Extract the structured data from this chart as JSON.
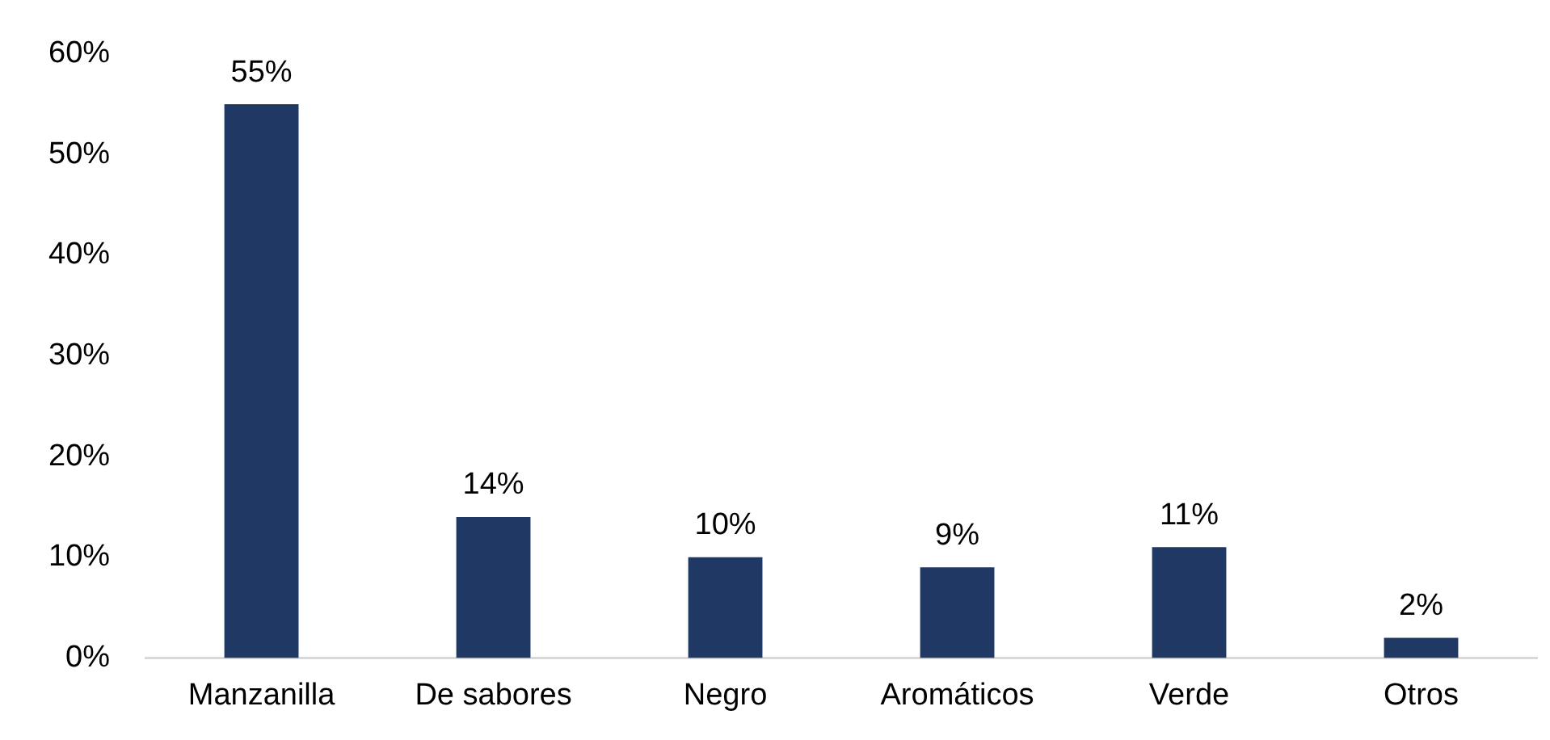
{
  "chart_data": {
    "type": "bar",
    "categories": [
      "Manzanilla",
      "De sabores",
      "Negro",
      "Aromáticos",
      "Verde",
      "Otros"
    ],
    "values": [
      55,
      14,
      10,
      9,
      11,
      2
    ],
    "value_labels": [
      "55%",
      "14%",
      "10%",
      "9%",
      "11%",
      "2%"
    ],
    "color": "#203864",
    "ylim": [
      0,
      60
    ],
    "yticks": [
      {
        "value": 0,
        "label": "0%"
      },
      {
        "value": 10,
        "label": "10%"
      },
      {
        "value": 20,
        "label": "20%"
      },
      {
        "value": 30,
        "label": "30%"
      },
      {
        "value": 40,
        "label": "40%"
      },
      {
        "value": 50,
        "label": "50%"
      },
      {
        "value": 60,
        "label": "60%"
      }
    ],
    "grid": false,
    "legend": false
  }
}
